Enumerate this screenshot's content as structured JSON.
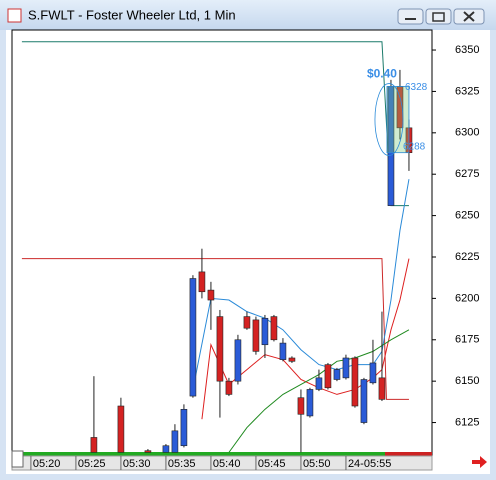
{
  "window": {
    "title": "S.FWLT - Foster Wheeler Ltd, 1 Min"
  },
  "chart_data": {
    "type": "candlestick",
    "xlim": [
      -2.1,
      44.56
    ],
    "ylim": [
      6104.8,
      6362.1
    ],
    "xticks": [
      {
        "value": 0,
        "label": "05:20"
      },
      {
        "value": 5,
        "label": "05:25"
      },
      {
        "value": 10,
        "label": "05:30"
      },
      {
        "value": 15,
        "label": "05:35"
      },
      {
        "value": 20,
        "label": "05:40"
      },
      {
        "value": 25,
        "label": "05:45"
      },
      {
        "value": 30,
        "label": "05:50"
      },
      {
        "value": 35,
        "label": "24-05:55"
      }
    ],
    "yticks": [
      6125,
      6150,
      6175,
      6200,
      6225,
      6250,
      6275,
      6300,
      6325,
      6350
    ],
    "up_color": "#2a5bd7",
    "down_color": "#d42222",
    "candles": {
      "x": [
        7,
        10,
        13,
        15,
        16,
        17,
        18,
        19,
        20,
        21,
        22,
        23,
        24,
        25,
        26,
        27,
        28,
        29,
        30,
        31,
        32,
        33,
        34,
        35,
        36,
        37,
        38,
        39,
        40,
        41,
        42
      ],
      "open": [
        6116,
        6135,
        6108,
        6107,
        6107,
        6111,
        6141,
        6216,
        6205,
        6189,
        6150,
        6150,
        6189,
        6187,
        6172,
        6189,
        6163,
        6164,
        6140,
        6129,
        6145,
        6160,
        6151,
        6152,
        6164,
        6125,
        6149,
        6152,
        6256,
        6328,
        6303
      ],
      "high": [
        6153,
        6140,
        6109,
        6112,
        6124,
        6136,
        6214,
        6230,
        6210,
        6193,
        6152,
        6178,
        6192,
        6189,
        6190,
        6190,
        6176,
        6165,
        6145,
        6146,
        6157,
        6161,
        6158,
        6166,
        6165,
        6152,
        6175,
        6192,
        6332,
        6338,
        6308
      ],
      "low": [
        6107,
        6107,
        6107,
        6107,
        6107,
        6110,
        6140,
        6200,
        6181,
        6128,
        6141,
        6148,
        6181,
        6166,
        6164,
        6174,
        6162,
        6161,
        6107,
        6128,
        6144,
        6145,
        6150,
        6151,
        6134,
        6124,
        6148,
        6138,
        6256,
        6296,
        6277
      ],
      "close": [
        6107,
        6107,
        6107,
        6111,
        6120,
        6133,
        6212,
        6204,
        6199,
        6150,
        6142,
        6175,
        6182,
        6168,
        6188,
        6175,
        6173,
        6162,
        6130,
        6145,
        6152,
        6146,
        6157,
        6164,
        6135,
        6151,
        6161,
        6139,
        6328,
        6303,
        6288
      ]
    },
    "lines": [
      {
        "color": "#1a7a6a",
        "x": [
          -1,
          39,
          40,
          42
        ],
        "values": [
          6355,
          6355,
          6256,
          6256
        ]
      },
      {
        "color": "#cc2a2a",
        "x": [
          -1,
          39,
          39.5,
          42
        ],
        "values": [
          6224,
          6224,
          6139,
          6139
        ]
      },
      {
        "color": "#2a8ad8",
        "x": [
          18,
          20,
          22,
          24,
          26,
          28,
          30,
          32,
          34,
          36,
          38,
          39,
          40,
          41,
          42
        ],
        "values": [
          6145,
          6200,
          6199,
          6192,
          6188,
          6181,
          6169,
          6160,
          6157,
          6160,
          6160,
          6168,
          6199,
          6241,
          6272
        ]
      },
      {
        "color": "#dd1f1f",
        "x": [
          19,
          20,
          22,
          24,
          26,
          28,
          30,
          32,
          34,
          36,
          38,
          39,
          40,
          41,
          42
        ],
        "values": [
          6127,
          6172,
          6148,
          6157,
          6166,
          6163,
          6151,
          6146,
          6142,
          6145,
          6152,
          6157,
          6181,
          6199,
          6224
        ]
      },
      {
        "color": "#1f8a1f",
        "x": [
          22,
          24,
          26,
          28,
          30,
          32,
          34,
          36,
          38,
          40,
          42
        ],
        "values": [
          6107,
          6122,
          6133,
          6142,
          6148,
          6154,
          6162,
          6164,
          6168,
          6175,
          6181
        ]
      }
    ],
    "measure": {
      "x": [
        40,
        42
      ],
      "from": 6328,
      "to": 6288,
      "label": "$0.40"
    }
  }
}
